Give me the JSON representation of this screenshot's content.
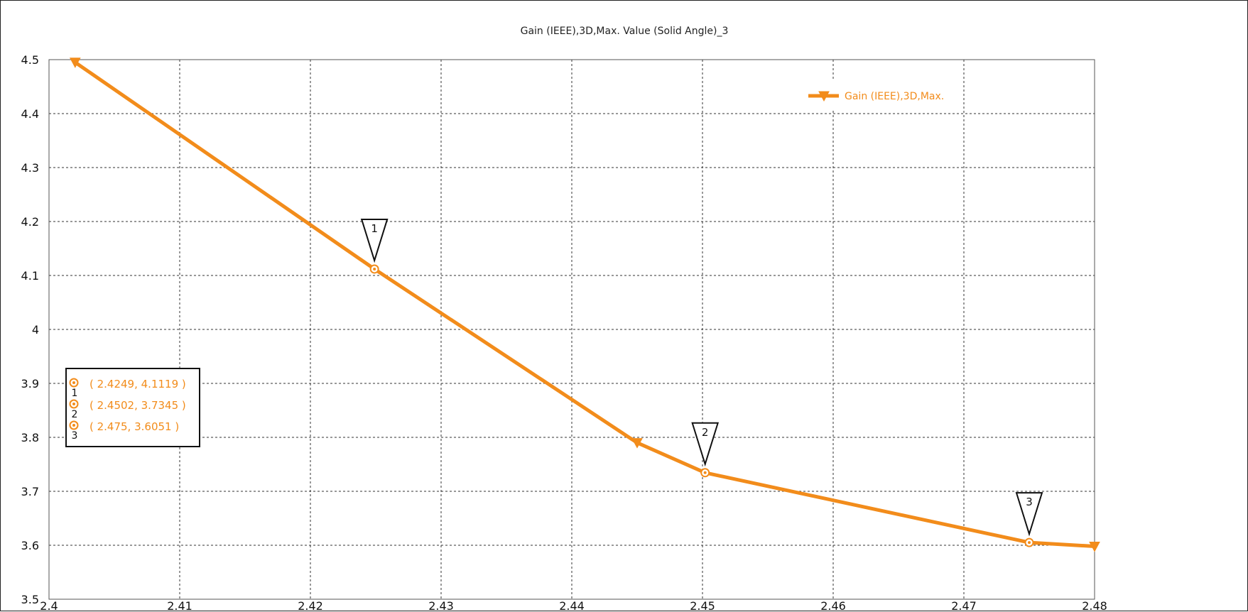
{
  "chart_data": {
    "type": "line",
    "title": "Gain (IEEE),3D,Max. Value (Solid Angle)_3",
    "xlabel": "",
    "ylabel": "",
    "xlim": [
      2.4,
      2.48
    ],
    "ylim": [
      3.5,
      4.5
    ],
    "grid": true,
    "legend_position": "top-right",
    "x_ticks": [
      "2.4",
      "2.41",
      "2.42",
      "2.43",
      "2.44",
      "2.45",
      "2.46",
      "2.47",
      "2.48"
    ],
    "y_ticks": [
      "3.5",
      "3.6",
      "3.7",
      "3.8",
      "3.9",
      "4",
      "4.1",
      "4.2",
      "4.3",
      "4.4",
      "4.5"
    ],
    "series": [
      {
        "name": "Gain (IEEE),3D,Max.",
        "color": "#f28c1b",
        "x": [
          2.402,
          2.4249,
          2.445,
          2.4502,
          2.475,
          2.48
        ],
        "y": [
          4.495,
          4.1119,
          3.79,
          3.7345,
          3.6051,
          3.598
        ]
      }
    ],
    "markers": [
      {
        "label": "1",
        "x": 2.4249,
        "y": 4.1119,
        "text": "( 2.4249, 4.1119 )"
      },
      {
        "label": "2",
        "x": 2.4502,
        "y": 3.7345,
        "text": "( 2.4502, 3.7345 )"
      },
      {
        "label": "3",
        "x": 2.475,
        "y": 3.6051,
        "text": "( 2.475, 3.6051 )"
      }
    ]
  }
}
